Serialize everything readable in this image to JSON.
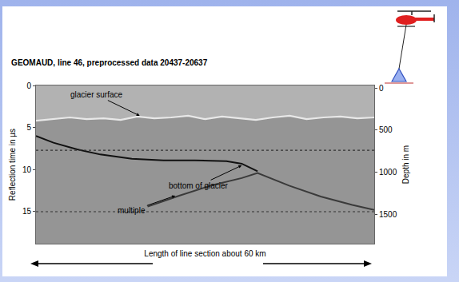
{
  "chart_data": {
    "type": "line",
    "title": "GEOMAUD, line 46, preprocessed data 20437-20637",
    "x_label": "Length of line section about 60 km",
    "y_label": "Reflection time in µs",
    "y2_label": "Depth in m",
    "xlim": [
      0,
      60
    ],
    "ylim": [
      18.8,
      0
    ],
    "yticks": [
      0,
      5,
      10,
      15
    ],
    "y2lim": [
      1850,
      -30
    ],
    "y2ticks": [
      0,
      500,
      1000,
      1500
    ],
    "tick_labels": "y",
    "grid": false,
    "series": [
      {
        "color": "#e8e8e8",
        "line_style": "solid",
        "x": [
          0,
          3,
          6,
          9,
          12,
          15,
          18,
          21,
          24,
          27,
          30,
          33,
          36,
          39,
          42,
          45,
          48,
          51,
          54,
          57,
          60
        ],
        "values": [
          4.2,
          4.0,
          3.8,
          4.0,
          3.9,
          4.1,
          3.7,
          3.9,
          3.8,
          3.6,
          4.0,
          3.7,
          3.9,
          4.1,
          3.8,
          3.6,
          4.0,
          3.8,
          3.7,
          3.9,
          3.8
        ]
      },
      {
        "color": "#111111",
        "line_style": "solid",
        "x": [
          0,
          3.1,
          7.3,
          11.4,
          17.0,
          22.6,
          28.2,
          33.8,
          36.5,
          38.6,
          39.3
        ],
        "values": [
          6.0,
          6.8,
          7.6,
          8.2,
          8.7,
          8.9,
          8.9,
          9.0,
          9.3,
          10.0,
          10.2
        ]
      },
      {
        "color": "#3a3a3a",
        "line_style": "solid",
        "x": [
          19.8,
          25.4,
          31.0,
          36.5,
          39.3,
          44.9,
          50.5,
          56.1,
          60
        ],
        "values": [
          14.4,
          13.1,
          11.9,
          11.0,
          10.4,
          11.9,
          13.2,
          14.2,
          14.8
        ]
      },
      {
        "color": "#333333",
        "line_style": "dotted",
        "x": [
          0,
          60
        ],
        "values": [
          7.7,
          7.7
        ]
      },
      {
        "color": "#333333",
        "line_style": "dotted",
        "x": [
          0,
          60
        ],
        "values": [
          15,
          15
        ]
      }
    ],
    "annotations": [
      {
        "text": "glacier surface",
        "x": 10.7,
        "y": 1.1,
        "arrow_x": 18.4,
        "arrow_y": 3.6
      },
      {
        "text": "bottom of glacier",
        "x": 28.9,
        "y": 11.9,
        "arrow_x": 36.5,
        "arrow_y": 9.5
      },
      {
        "text": "multiple",
        "x": 17.0,
        "y": 14.9,
        "arrow_x": 24.7,
        "arrow_y": 13.1
      }
    ]
  }
}
